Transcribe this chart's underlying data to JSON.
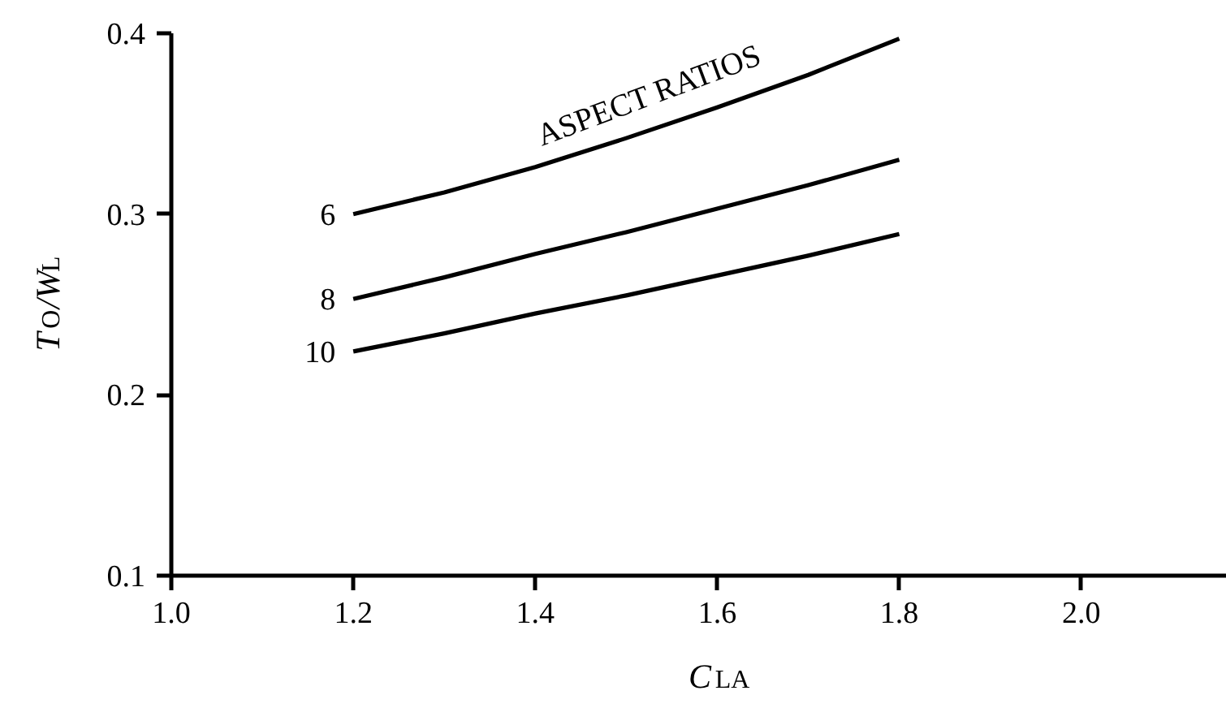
{
  "chart_data": {
    "type": "line",
    "xlabel": "C$_{LA}$",
    "ylabel": "T$_{O}$/W$_{L}$",
    "x": [
      1.2,
      1.3,
      1.4,
      1.5,
      1.6,
      1.7,
      1.8
    ],
    "series": [
      {
        "name": "6",
        "color": "#000000",
        "values": [
          0.3,
          0.312,
          0.326,
          0.342,
          0.359,
          0.377,
          0.397
        ]
      },
      {
        "name": "8",
        "color": "#000000",
        "values": [
          0.253,
          0.265,
          0.278,
          0.29,
          0.303,
          0.316,
          0.33
        ]
      },
      {
        "name": "10",
        "color": "#000000",
        "values": [
          0.224,
          0.234,
          0.245,
          0.255,
          0.266,
          0.277,
          0.289
        ]
      }
    ],
    "annotations": [
      "ASPECT RATIOS"
    ],
    "xlim": [
      1.0,
      2.16
    ],
    "ylim": [
      0.1,
      0.4
    ],
    "xticks": [
      {
        "value": 1,
        "label": "1.0"
      },
      1.2,
      1.4,
      1.6,
      1.8,
      {
        "value": 2,
        "label": "2.0"
      }
    ],
    "yticks": [
      0.1,
      0.2,
      0.3,
      0.4
    ],
    "grid": false,
    "legend": false
  }
}
